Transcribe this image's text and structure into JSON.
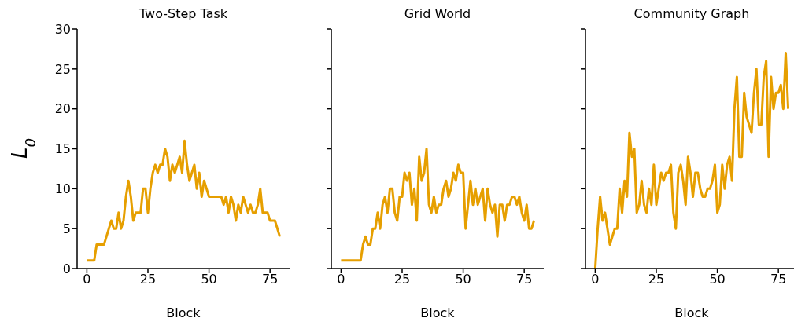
{
  "chart_data": [
    {
      "type": "line",
      "title": "Two-Step Task",
      "xlabel": "Block",
      "ylabel": "L$_{0}$",
      "color": "#e69f00",
      "xlim": [
        -4,
        83
      ],
      "xticks": [
        0,
        25,
        50,
        75
      ],
      "ylim": [
        0,
        30
      ],
      "yticks": [
        0,
        5,
        10,
        15,
        20,
        25,
        30
      ],
      "x": [
        0,
        1,
        2,
        3,
        4,
        5,
        6,
        7,
        8,
        9,
        10,
        11,
        12,
        13,
        14,
        15,
        16,
        17,
        18,
        19,
        20,
        21,
        22,
        23,
        24,
        25,
        26,
        27,
        28,
        29,
        30,
        31,
        32,
        33,
        34,
        35,
        36,
        37,
        38,
        39,
        40,
        41,
        42,
        43,
        44,
        45,
        46,
        47,
        48,
        49,
        50,
        51,
        52,
        53,
        54,
        55,
        56,
        57,
        58,
        59,
        60,
        61,
        62,
        63,
        64,
        65,
        66,
        67,
        68,
        69,
        70,
        71,
        72,
        73,
        74,
        75,
        76,
        77,
        78,
        79
      ],
      "values": [
        1,
        1,
        1,
        1,
        3,
        3,
        3,
        3,
        4,
        5,
        6,
        5,
        5,
        7,
        5,
        6,
        9,
        11,
        9,
        6,
        7,
        7,
        7,
        10,
        10,
        7,
        10,
        12,
        13,
        12,
        13,
        13,
        15,
        14,
        11,
        13,
        12,
        13,
        14,
        12,
        16,
        13,
        11,
        12,
        13,
        10,
        12,
        9,
        11,
        10,
        9,
        9,
        9,
        9,
        9,
        9,
        8,
        9,
        7,
        9,
        8,
        6,
        8,
        7,
        9,
        8,
        7,
        8,
        7,
        7,
        8,
        10,
        7,
        7,
        7,
        6,
        6,
        6,
        5,
        4
      ]
    },
    {
      "type": "line",
      "title": "Grid World",
      "xlabel": "Block",
      "color": "#e69f00",
      "xlim": [
        -4,
        83
      ],
      "xticks": [
        0,
        25,
        50,
        75
      ],
      "ylim": [
        0,
        30
      ],
      "yticks": [
        0,
        5,
        10,
        15,
        20,
        25,
        30
      ],
      "tick_labels": "x",
      "x": [
        0,
        1,
        2,
        3,
        4,
        5,
        6,
        7,
        8,
        9,
        10,
        11,
        12,
        13,
        14,
        15,
        16,
        17,
        18,
        19,
        20,
        21,
        22,
        23,
        24,
        25,
        26,
        27,
        28,
        29,
        30,
        31,
        32,
        33,
        34,
        35,
        36,
        37,
        38,
        39,
        40,
        41,
        42,
        43,
        44,
        45,
        46,
        47,
        48,
        49,
        50,
        51,
        52,
        53,
        54,
        55,
        56,
        57,
        58,
        59,
        60,
        61,
        62,
        63,
        64,
        65,
        66,
        67,
        68,
        69,
        70,
        71,
        72,
        73,
        74,
        75,
        76,
        77,
        78,
        79
      ],
      "values": [
        1,
        1,
        1,
        1,
        1,
        1,
        1,
        1,
        1,
        3,
        4,
        3,
        3,
        5,
        5,
        7,
        5,
        8,
        9,
        7,
        10,
        10,
        7,
        6,
        9,
        9,
        12,
        11,
        12,
        8,
        10,
        6,
        14,
        11,
        12,
        15,
        8,
        7,
        9,
        7,
        8,
        8,
        10,
        11,
        9,
        10,
        12,
        11,
        13,
        12,
        12,
        5,
        8,
        11,
        8,
        10,
        8,
        9,
        10,
        6,
        10,
        8,
        7,
        8,
        4,
        8,
        8,
        6,
        8,
        8,
        9,
        9,
        8,
        9,
        7,
        6,
        8,
        5,
        5,
        6
      ]
    },
    {
      "type": "line",
      "title": "Community Graph",
      "xlabel": "Block",
      "color": "#e69f00",
      "xlim": [
        -4,
        83
      ],
      "xticks": [
        0,
        25,
        50,
        75
      ],
      "ylim": [
        0,
        30
      ],
      "yticks": [
        0,
        5,
        10,
        15,
        20,
        25,
        30
      ],
      "tick_labels": "x",
      "x": [
        0,
        1,
        2,
        3,
        4,
        5,
        6,
        7,
        8,
        9,
        10,
        11,
        12,
        13,
        14,
        15,
        16,
        17,
        18,
        19,
        20,
        21,
        22,
        23,
        24,
        25,
        26,
        27,
        28,
        29,
        30,
        31,
        32,
        33,
        34,
        35,
        36,
        37,
        38,
        39,
        40,
        41,
        42,
        43,
        44,
        45,
        46,
        47,
        48,
        49,
        50,
        51,
        52,
        53,
        54,
        55,
        56,
        57,
        58,
        59,
        60,
        61,
        62,
        63,
        64,
        65,
        66,
        67,
        68,
        69,
        70,
        71,
        72,
        73,
        74,
        75,
        76,
        77,
        78,
        79
      ],
      "values": [
        0,
        5,
        9,
        6,
        7,
        5,
        3,
        4,
        5,
        5,
        10,
        7,
        11,
        9,
        17,
        14,
        15,
        7,
        8,
        11,
        8,
        7,
        10,
        8,
        13,
        8,
        10,
        12,
        11,
        12,
        12,
        13,
        7,
        5,
        12,
        13,
        11,
        8,
        14,
        12,
        9,
        12,
        12,
        10,
        9,
        9,
        10,
        10,
        11,
        13,
        7,
        8,
        13,
        10,
        13,
        14,
        11,
        20,
        24,
        14,
        14,
        22,
        19,
        18,
        17,
        22,
        25,
        18,
        18,
        24,
        26,
        14,
        24,
        20,
        22,
        22,
        23,
        20,
        27,
        20
      ]
    }
  ]
}
